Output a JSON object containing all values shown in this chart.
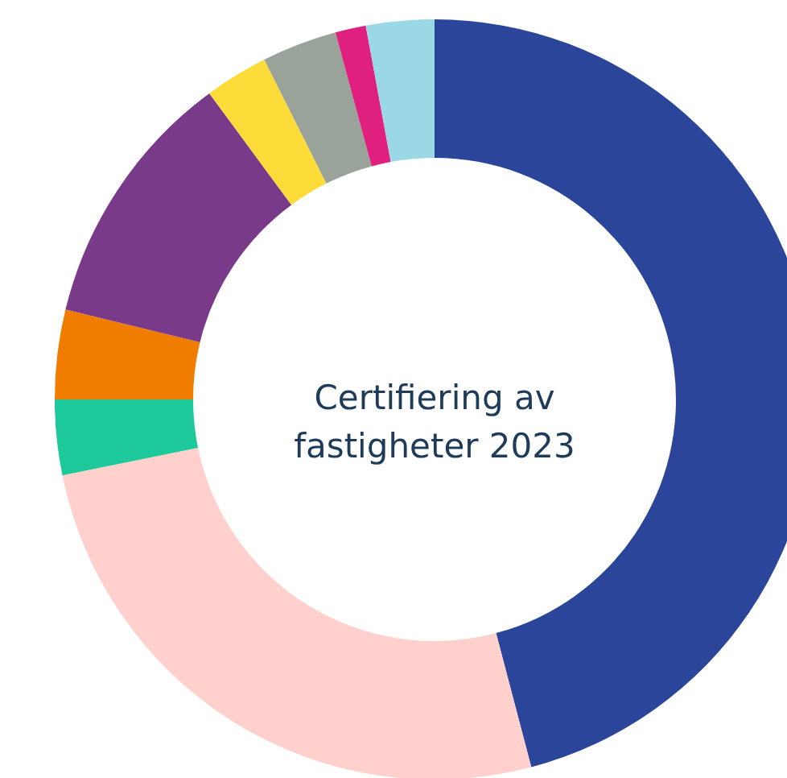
{
  "chart_data": {
    "type": "donut",
    "title": "Certifiering av\nfastigheter 2023",
    "categories": [
      null,
      null,
      null,
      null,
      null,
      null,
      null,
      null,
      null
    ],
    "values": [
      45.9,
      25.9,
      3.2,
      3.8,
      11.1,
      2.7,
      3.2,
      1.3,
      2.9
    ],
    "colors": [
      "#2a4599",
      "#ffd0cc",
      "#1dc99a",
      "#f07d00",
      "#7a3a8a",
      "#fddc3a",
      "#9aa39a",
      "#e0207f",
      "#9bd8e6"
    ]
  }
}
